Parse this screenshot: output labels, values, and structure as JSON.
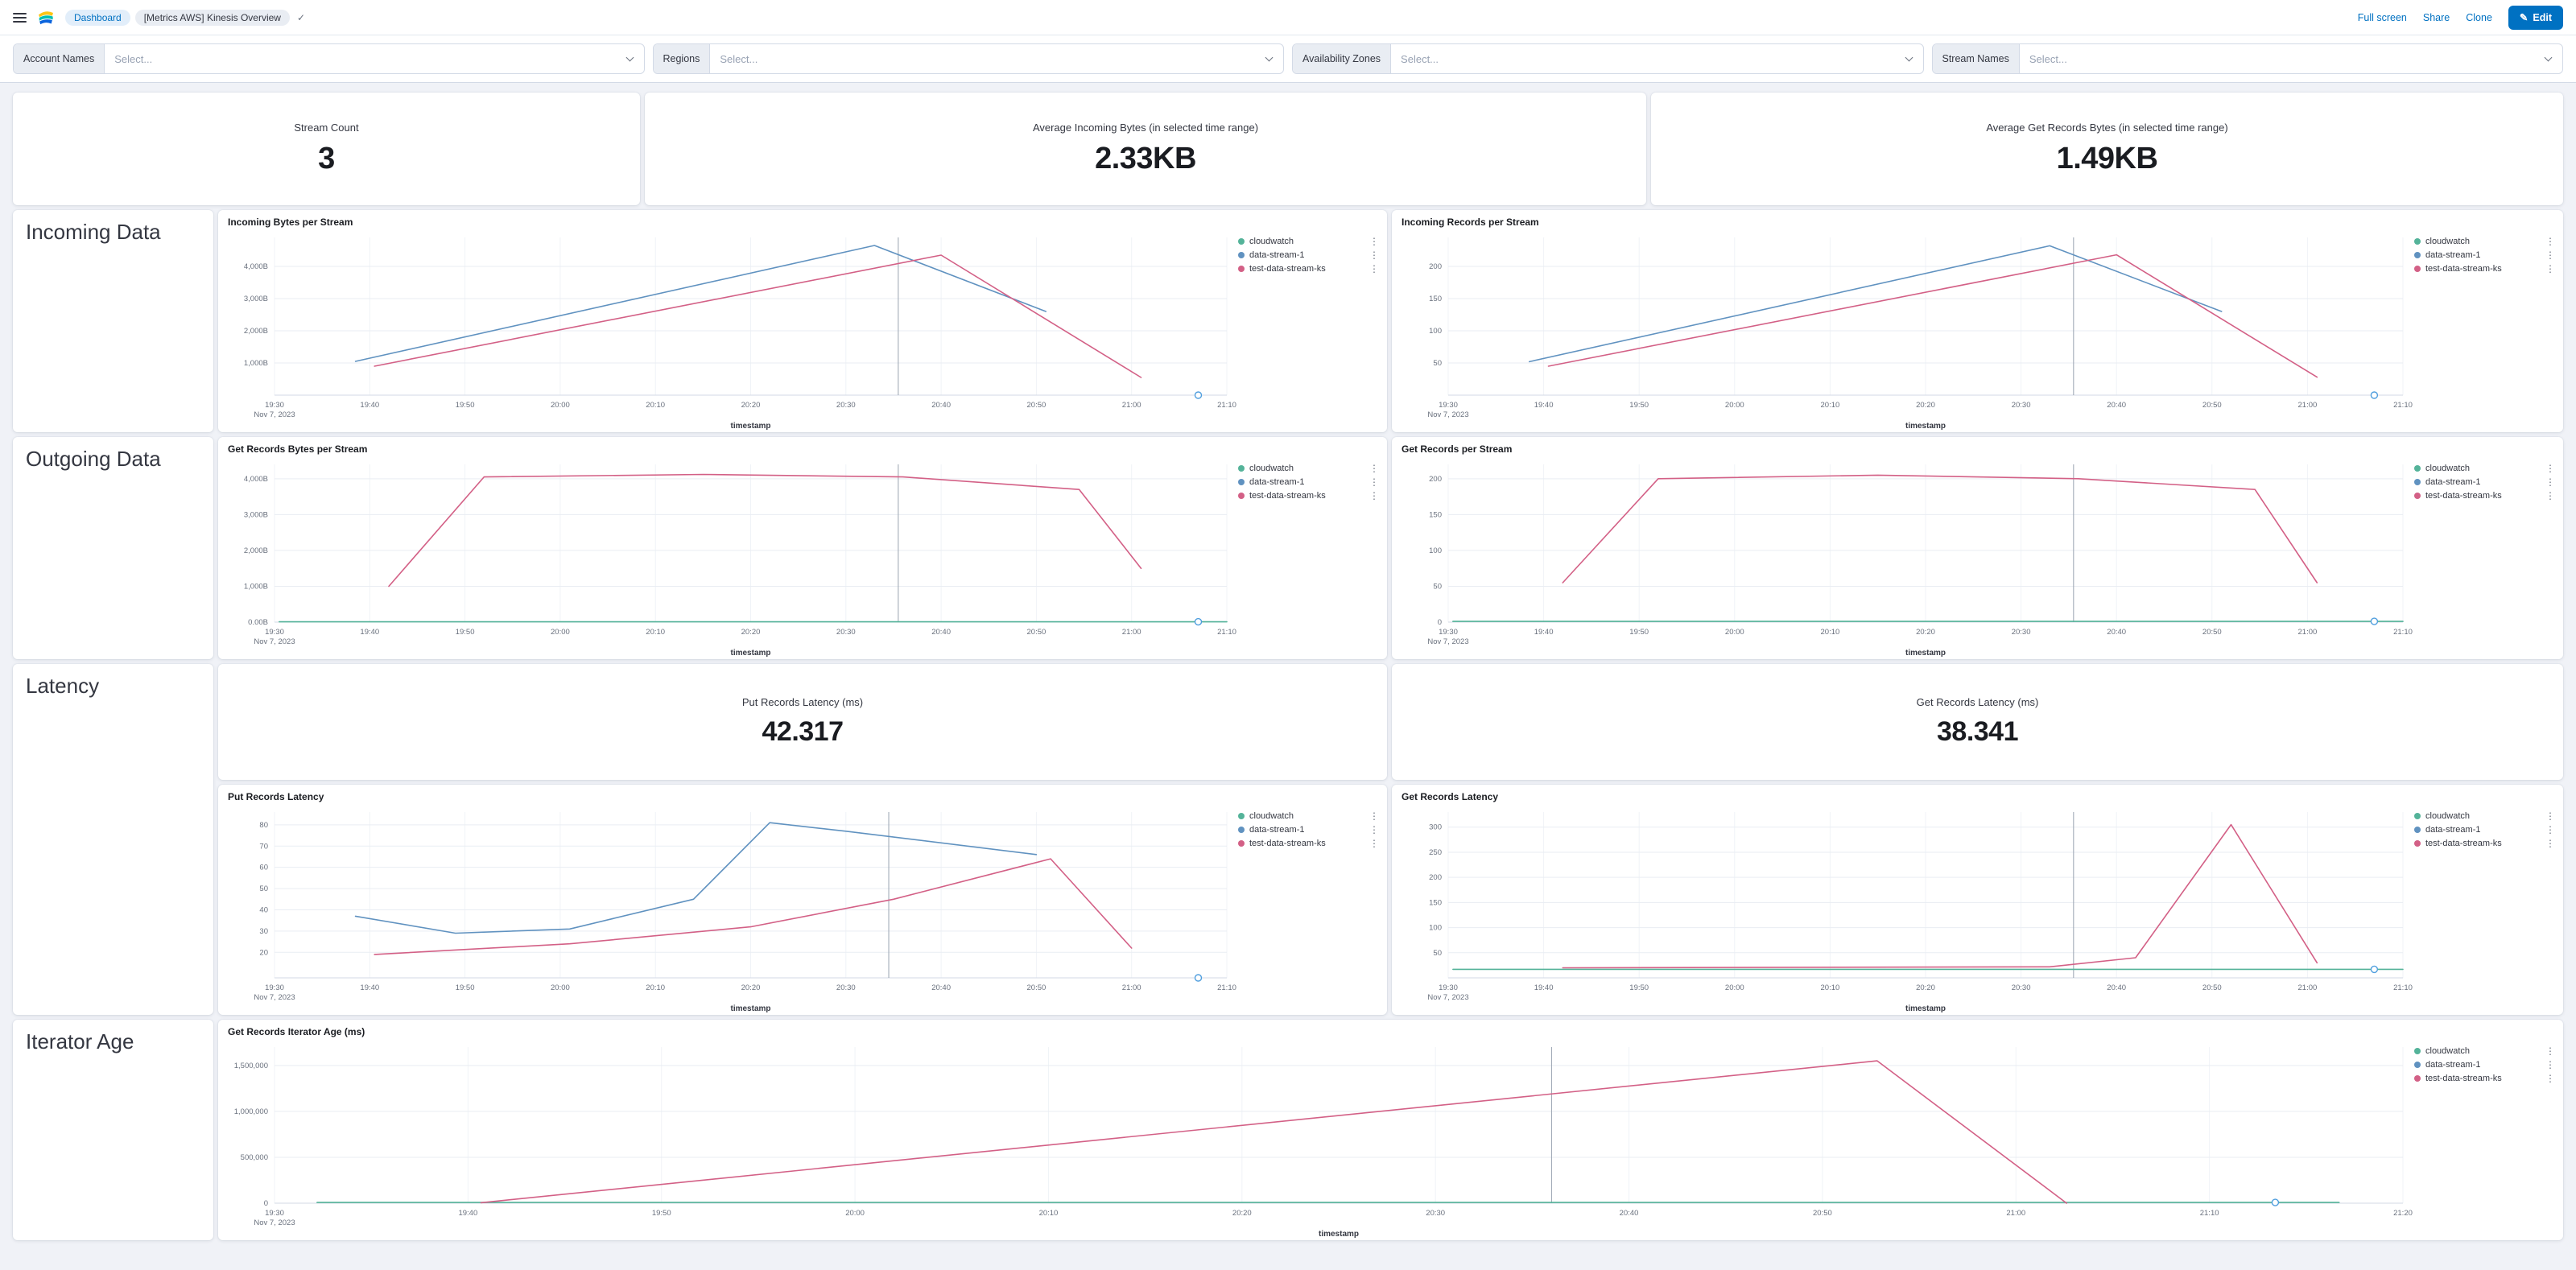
{
  "header": {
    "breadcrumbs": {
      "root": "Dashboard",
      "current": "[Metrics AWS] Kinesis Overview"
    },
    "actions": {
      "full_screen": "Full screen",
      "share": "Share",
      "clone": "Clone",
      "edit": "Edit"
    }
  },
  "icons": {
    "saved_check": "✓",
    "edit_pencil": "✎",
    "legend_menu": "⋮"
  },
  "filters": [
    {
      "label": "Account Names",
      "placeholder": "Select..."
    },
    {
      "label": "Regions",
      "placeholder": "Select..."
    },
    {
      "label": "Availability Zones",
      "placeholder": "Select..."
    },
    {
      "label": "Stream Names",
      "placeholder": "Select..."
    }
  ],
  "metrics": {
    "stream_count": {
      "title": "Stream Count",
      "value": "3"
    },
    "avg_incoming_bytes": {
      "title": "Average Incoming Bytes (in selected time range)",
      "value": "2.33KB"
    },
    "avg_get_records_bytes": {
      "title": "Average Get Records Bytes (in selected time range)",
      "value": "1.49KB"
    },
    "put_records_latency": {
      "title": "Put Records Latency (ms)",
      "value": "42.317"
    },
    "get_records_latency": {
      "title": "Get Records Latency (ms)",
      "value": "38.341"
    }
  },
  "sections": {
    "incoming": "Incoming Data",
    "outgoing": "Outgoing Data",
    "latency": "Latency",
    "iterator": "Iterator Age"
  },
  "colors": {
    "cloudwatch": "#54B399",
    "data_stream_1": "#6092C0",
    "test_stream": "#D36086",
    "accent": "#0071C2",
    "marker": "#4F9EDE",
    "annotation": "#99A3B0",
    "grid": "#E9EDF3",
    "axis": "#D3DAE6",
    "tick_text": "#69707D"
  },
  "chart_data": [
    {
      "type": "line",
      "title": "Incoming Bytes per Stream",
      "xlabel": "timestamp",
      "x_ticks": [
        "19:30",
        "19:40",
        "19:50",
        "20:00",
        "20:10",
        "20:20",
        "20:30",
        "20:40",
        "20:50",
        "21:00",
        "21:10"
      ],
      "x_date": "Nov 7, 2023",
      "ylim": [
        0,
        4900
      ],
      "y_ticks": [
        {
          "v": 1000,
          "label": "1,000B"
        },
        {
          "v": 2000,
          "label": "2,000B"
        },
        {
          "v": 3000,
          "label": "3,000B"
        },
        {
          "v": 4000,
          "label": "4,000B"
        }
      ],
      "annotation_x": 0.655,
      "end_marker": [
        0.97,
        0
      ],
      "legend_position": "right",
      "series": [
        {
          "name": "cloudwatch",
          "color": "#54B399",
          "points": []
        },
        {
          "name": "data-stream-1",
          "color": "#6092C0",
          "points": [
            [
              0.085,
              1050
            ],
            [
              0.63,
              4650
            ],
            [
              0.81,
              2600
            ]
          ]
        },
        {
          "name": "test-data-stream-ks",
          "color": "#D36086",
          "points": [
            [
              0.105,
              900
            ],
            [
              0.7,
              4350
            ],
            [
              0.91,
              550
            ]
          ]
        }
      ]
    },
    {
      "type": "line",
      "title": "Incoming Records per Stream",
      "xlabel": "timestamp",
      "x_ticks": [
        "19:30",
        "19:40",
        "19:50",
        "20:00",
        "20:10",
        "20:20",
        "20:30",
        "20:40",
        "20:50",
        "21:00",
        "21:10"
      ],
      "x_date": "Nov 7, 2023",
      "ylim": [
        0,
        245
      ],
      "y_ticks": [
        {
          "v": 50,
          "label": "50"
        },
        {
          "v": 100,
          "label": "100"
        },
        {
          "v": 150,
          "label": "150"
        },
        {
          "v": 200,
          "label": "200"
        }
      ],
      "annotation_x": 0.655,
      "end_marker": [
        0.97,
        0
      ],
      "legend_position": "right",
      "series": [
        {
          "name": "cloudwatch",
          "color": "#54B399",
          "points": []
        },
        {
          "name": "data-stream-1",
          "color": "#6092C0",
          "points": [
            [
              0.085,
              52
            ],
            [
              0.63,
              232
            ],
            [
              0.81,
              130
            ]
          ]
        },
        {
          "name": "test-data-stream-ks",
          "color": "#D36086",
          "points": [
            [
              0.105,
              45
            ],
            [
              0.7,
              218
            ],
            [
              0.91,
              28
            ]
          ]
        }
      ]
    },
    {
      "type": "line",
      "title": "Get Records Bytes per Stream",
      "xlabel": "timestamp",
      "x_ticks": [
        "19:30",
        "19:40",
        "19:50",
        "20:00",
        "20:10",
        "20:20",
        "20:30",
        "20:40",
        "20:50",
        "21:00",
        "21:10"
      ],
      "x_date": "Nov 7, 2023",
      "ylim": [
        0,
        4400
      ],
      "y_ticks": [
        {
          "v": 0,
          "label": "0.00B"
        },
        {
          "v": 1000,
          "label": "1,000B"
        },
        {
          "v": 2000,
          "label": "2,000B"
        },
        {
          "v": 3000,
          "label": "3,000B"
        },
        {
          "v": 4000,
          "label": "4,000B"
        }
      ],
      "annotation_x": 0.655,
      "end_marker": [
        0.97,
        8
      ],
      "legend_position": "right",
      "series": [
        {
          "name": "cloudwatch",
          "color": "#54B399",
          "points": [
            [
              0.005,
              8
            ],
            [
              1.0,
              8
            ]
          ]
        },
        {
          "name": "data-stream-1",
          "color": "#6092C0",
          "points": []
        },
        {
          "name": "test-data-stream-ks",
          "color": "#D36086",
          "points": [
            [
              0.12,
              1000
            ],
            [
              0.22,
              4050
            ],
            [
              0.45,
              4120
            ],
            [
              0.66,
              4050
            ],
            [
              0.845,
              3700
            ],
            [
              0.91,
              1500
            ]
          ]
        }
      ]
    },
    {
      "type": "line",
      "title": "Get Records per Stream",
      "xlabel": "timestamp",
      "x_ticks": [
        "19:30",
        "19:40",
        "19:50",
        "20:00",
        "20:10",
        "20:20",
        "20:30",
        "20:40",
        "20:50",
        "21:00",
        "21:10"
      ],
      "x_date": "Nov 7, 2023",
      "ylim": [
        0,
        220
      ],
      "y_ticks": [
        {
          "v": 0,
          "label": "0"
        },
        {
          "v": 50,
          "label": "50"
        },
        {
          "v": 100,
          "label": "100"
        },
        {
          "v": 150,
          "label": "150"
        },
        {
          "v": 200,
          "label": "200"
        }
      ],
      "annotation_x": 0.655,
      "end_marker": [
        0.97,
        1
      ],
      "legend_position": "right",
      "series": [
        {
          "name": "cloudwatch",
          "color": "#54B399",
          "points": [
            [
              0.005,
              1
            ],
            [
              1.0,
              1
            ]
          ]
        },
        {
          "name": "data-stream-1",
          "color": "#6092C0",
          "points": []
        },
        {
          "name": "test-data-stream-ks",
          "color": "#D36086",
          "points": [
            [
              0.12,
              55
            ],
            [
              0.22,
              200
            ],
            [
              0.45,
              205
            ],
            [
              0.66,
              200
            ],
            [
              0.845,
              185
            ],
            [
              0.91,
              55
            ]
          ]
        }
      ]
    },
    {
      "type": "line",
      "title": "Put Records Latency",
      "xlabel": "timestamp",
      "x_ticks": [
        "19:30",
        "19:40",
        "19:50",
        "20:00",
        "20:10",
        "20:20",
        "20:30",
        "20:40",
        "20:50",
        "21:00",
        "21:10"
      ],
      "x_date": "Nov 7, 2023",
      "ylim": [
        8,
        86
      ],
      "y_ticks": [
        {
          "v": 20,
          "label": "20"
        },
        {
          "v": 30,
          "label": "30"
        },
        {
          "v": 40,
          "label": "40"
        },
        {
          "v": 50,
          "label": "50"
        },
        {
          "v": 60,
          "label": "60"
        },
        {
          "v": 70,
          "label": "70"
        },
        {
          "v": 80,
          "label": "80"
        }
      ],
      "annotation_x": 0.645,
      "end_marker": [
        0.97,
        8
      ],
      "legend_position": "right",
      "series": [
        {
          "name": "cloudwatch",
          "color": "#54B399",
          "points": []
        },
        {
          "name": "data-stream-1",
          "color": "#6092C0",
          "points": [
            [
              0.085,
              37
            ],
            [
              0.19,
              29
            ],
            [
              0.31,
              31
            ],
            [
              0.44,
              45
            ],
            [
              0.52,
              81
            ],
            [
              0.6,
              77
            ],
            [
              0.8,
              66
            ]
          ]
        },
        {
          "name": "test-data-stream-ks",
          "color": "#D36086",
          "points": [
            [
              0.105,
              19
            ],
            [
              0.31,
              24
            ],
            [
              0.5,
              32
            ],
            [
              0.65,
              45
            ],
            [
              0.815,
              64
            ],
            [
              0.9,
              22
            ]
          ]
        }
      ]
    },
    {
      "type": "line",
      "title": "Get Records Latency",
      "xlabel": "timestamp",
      "x_ticks": [
        "19:30",
        "19:40",
        "19:50",
        "20:00",
        "20:10",
        "20:20",
        "20:30",
        "20:40",
        "20:50",
        "21:00",
        "21:10"
      ],
      "x_date": "Nov 7, 2023",
      "ylim": [
        0,
        330
      ],
      "y_ticks": [
        {
          "v": 50,
          "label": "50"
        },
        {
          "v": 100,
          "label": "100"
        },
        {
          "v": 150,
          "label": "150"
        },
        {
          "v": 200,
          "label": "200"
        },
        {
          "v": 250,
          "label": "250"
        },
        {
          "v": 300,
          "label": "300"
        }
      ],
      "annotation_x": 0.655,
      "end_marker": [
        0.97,
        17
      ],
      "legend_position": "right",
      "series": [
        {
          "name": "cloudwatch",
          "color": "#54B399",
          "points": [
            [
              0.005,
              17
            ],
            [
              1.0,
              17
            ]
          ]
        },
        {
          "name": "data-stream-1",
          "color": "#6092C0",
          "points": []
        },
        {
          "name": "test-data-stream-ks",
          "color": "#D36086",
          "points": [
            [
              0.12,
              20
            ],
            [
              0.63,
              22
            ],
            [
              0.72,
              40
            ],
            [
              0.82,
              305
            ],
            [
              0.91,
              30
            ]
          ]
        }
      ]
    },
    {
      "type": "line",
      "title": "Get Records Iterator Age (ms)",
      "xlabel": "timestamp",
      "x_ticks": [
        "19:30",
        "19:40",
        "19:50",
        "20:00",
        "20:10",
        "20:20",
        "20:30",
        "20:40",
        "20:50",
        "21:00",
        "21:10",
        "21:20"
      ],
      "x_date": "Nov 7, 2023",
      "ylim": [
        0,
        1700000
      ],
      "y_ticks": [
        {
          "v": 0,
          "label": "0"
        },
        {
          "v": 500000,
          "label": "500,000"
        },
        {
          "v": 1000000,
          "label": "1,000,000"
        },
        {
          "v": 1500000,
          "label": "1,500,000"
        }
      ],
      "annotation_x": 0.6,
      "end_marker": [
        0.94,
        8000
      ],
      "legend_position": "right",
      "series": [
        {
          "name": "cloudwatch",
          "color": "#54B399",
          "points": [
            [
              0.02,
              8000
            ],
            [
              0.97,
              8000
            ]
          ]
        },
        {
          "name": "data-stream-1",
          "color": "#6092C0",
          "points": []
        },
        {
          "name": "test-data-stream-ks",
          "color": "#D36086",
          "points": [
            [
              0.097,
              5000
            ],
            [
              0.753,
              1550000
            ],
            [
              0.842,
              0
            ]
          ]
        }
      ]
    }
  ]
}
